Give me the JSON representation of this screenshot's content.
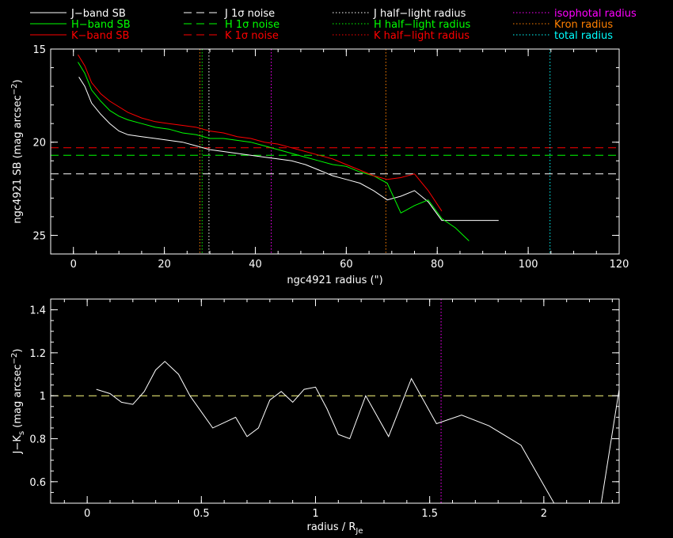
{
  "chart_data": [
    {
      "type": "line",
      "xlabel": "ngc4921 radius (\")",
      "ylabel": "ngc4921 SB (mag arcsec",
      "ylabel_sup": "−2",
      "ylabel_tail": ")",
      "xlim": [
        -5,
        120
      ],
      "ylim": [
        15,
        26
      ],
      "y_inverted": true,
      "xticks": [
        0,
        20,
        40,
        60,
        80,
        100,
        120
      ],
      "yticks": [
        15,
        20,
        25
      ],
      "legend": [
        {
          "label": "J−band SB",
          "color": "#ffffff",
          "style": "solid"
        },
        {
          "label": "H−band SB",
          "color": "#00ff00",
          "style": "solid"
        },
        {
          "label": "K−band SB",
          "color": "#ff0000",
          "style": "solid"
        },
        {
          "label": "J 1σ noise",
          "color": "#ffffff",
          "style": "dashed"
        },
        {
          "label": "H 1σ noise",
          "color": "#00ff00",
          "style": "dashed"
        },
        {
          "label": "K 1σ noise",
          "color": "#ff0000",
          "style": "dashed"
        },
        {
          "label": "J half−light radius",
          "color": "#ffffff",
          "style": "dotted"
        },
        {
          "label": "H half−light radius",
          "color": "#00ff00",
          "style": "dotted"
        },
        {
          "label": "K half−light radius",
          "color": "#ff0000",
          "style": "dotted"
        },
        {
          "label": "isophotal radius",
          "color": "#ff00ff",
          "style": "dotted"
        },
        {
          "label": "Kron radius",
          "color": "#ff8000",
          "style": "dotted"
        },
        {
          "label": "total radius",
          "color": "#00ffff",
          "style": "dotted"
        }
      ],
      "series": [
        {
          "name": "J−band SB",
          "color": "#ffffff",
          "x": [
            1.2,
            2.5,
            4,
            6,
            8,
            10,
            12,
            15,
            18,
            21,
            24,
            27,
            30,
            33,
            36,
            39,
            42,
            45,
            48,
            51,
            54,
            57,
            60,
            63,
            66,
            69,
            72,
            75,
            78,
            81,
            84,
            87,
            90,
            93.5
          ],
          "y": [
            16.5,
            17.0,
            17.9,
            18.5,
            19.0,
            19.4,
            19.6,
            19.7,
            19.8,
            19.9,
            20.0,
            20.2,
            20.4,
            20.5,
            20.6,
            20.7,
            20.8,
            20.9,
            21.0,
            21.2,
            21.5,
            21.8,
            22.0,
            22.2,
            22.6,
            23.1,
            22.9,
            22.6,
            23.2,
            24.2,
            24.2,
            24.2,
            24.2,
            24.2
          ]
        },
        {
          "name": "H−band SB",
          "color": "#00ff00",
          "x": [
            1,
            2.5,
            4,
            6,
            8,
            10,
            12,
            15,
            18,
            21,
            24,
            27,
            30,
            33,
            36,
            39,
            42,
            45,
            48,
            51,
            54,
            57,
            60,
            63,
            66,
            69,
            72,
            75,
            78,
            81,
            84,
            87
          ],
          "y": [
            15.7,
            16.3,
            17.2,
            17.8,
            18.3,
            18.6,
            18.8,
            19.0,
            19.2,
            19.3,
            19.5,
            19.6,
            19.8,
            19.8,
            19.9,
            20.0,
            20.2,
            20.4,
            20.6,
            20.8,
            21.0,
            21.2,
            21.3,
            21.6,
            21.8,
            22.2,
            23.8,
            23.4,
            23.1,
            24.1,
            24.6,
            25.3
          ]
        },
        {
          "name": "K−band SB",
          "color": "#ff0000",
          "x": [
            1,
            2.5,
            4,
            6,
            8,
            10,
            12,
            15,
            18,
            21,
            24,
            27,
            30,
            33,
            36,
            39,
            42,
            45,
            48,
            51,
            54,
            57,
            60,
            63,
            66,
            69,
            72,
            75,
            78,
            81
          ],
          "y": [
            15.3,
            15.9,
            16.8,
            17.4,
            17.8,
            18.1,
            18.4,
            18.7,
            18.9,
            19.0,
            19.1,
            19.2,
            19.4,
            19.5,
            19.7,
            19.8,
            20.0,
            20.1,
            20.3,
            20.5,
            20.7,
            20.9,
            21.2,
            21.5,
            21.8,
            22.0,
            21.9,
            21.7,
            22.6,
            23.7
          ]
        }
      ],
      "hlines": [
        {
          "y": 21.7,
          "color": "#ffffff",
          "style": "dashed"
        },
        {
          "y": 20.7,
          "color": "#00ff00",
          "style": "dashed"
        },
        {
          "y": 20.3,
          "color": "#ff0000",
          "style": "dashed"
        }
      ],
      "vlines": [
        {
          "x": 27.8,
          "color": "#ff8000",
          "style": "dotted"
        },
        {
          "x": 28.3,
          "color": "#00ff00",
          "style": "dotted"
        },
        {
          "x": 29.8,
          "color": "#ffffff",
          "style": "dotted"
        },
        {
          "x": 43.5,
          "color": "#ff00ff",
          "style": "dotted"
        },
        {
          "x": 68.7,
          "color": "#ff8000",
          "style": "dotted"
        },
        {
          "x": 104.8,
          "color": "#00ffff",
          "style": "dotted"
        }
      ]
    },
    {
      "type": "line",
      "xlabel": "radius / R",
      "xlabel_sub": "Je",
      "ylabel": "J−K",
      "ylabel_sub": "s",
      "ylabel_tail": " (mag arcsec",
      "ylabel_sup": "−2",
      "ylabel_end": ")",
      "xlim": [
        -0.16,
        2.33
      ],
      "ylim": [
        0.5,
        1.45
      ],
      "xticks": [
        0,
        0.5,
        1,
        1.5,
        2
      ],
      "xticklabels": [
        "0",
        "0.5",
        "1",
        "1.5",
        "2"
      ],
      "yticks": [
        0.6,
        0.8,
        1,
        1.2,
        1.4
      ],
      "yticklabels": [
        "0.6",
        "0.8",
        "1",
        "1.2",
        "1.4"
      ],
      "series": [
        {
          "name": "J−K",
          "color": "#ffffff",
          "x": [
            0.04,
            0.1,
            0.15,
            0.2,
            0.25,
            0.3,
            0.34,
            0.4,
            0.45,
            0.55,
            0.65,
            0.7,
            0.75,
            0.8,
            0.85,
            0.9,
            0.95,
            1.0,
            1.05,
            1.1,
            1.15,
            1.22,
            1.32,
            1.42,
            1.53,
            1.64,
            1.76,
            1.9,
            2.05,
            2.15,
            2.25,
            2.33
          ],
          "y": [
            1.03,
            1.01,
            0.97,
            0.96,
            1.02,
            1.12,
            1.16,
            1.1,
            1.0,
            0.85,
            0.9,
            0.81,
            0.85,
            0.98,
            1.02,
            0.97,
            1.03,
            1.04,
            0.94,
            0.82,
            0.8,
            1.0,
            0.81,
            1.08,
            0.87,
            0.91,
            0.86,
            0.77,
            0.49,
            0.49,
            0.49,
            1.03
          ]
        }
      ],
      "hlines": [
        {
          "y": 1.0,
          "color": "#ffff80",
          "style": "dashed"
        }
      ],
      "vlines": [
        {
          "x": 1.55,
          "color": "#ff00ff",
          "style": "dotted"
        }
      ]
    }
  ]
}
